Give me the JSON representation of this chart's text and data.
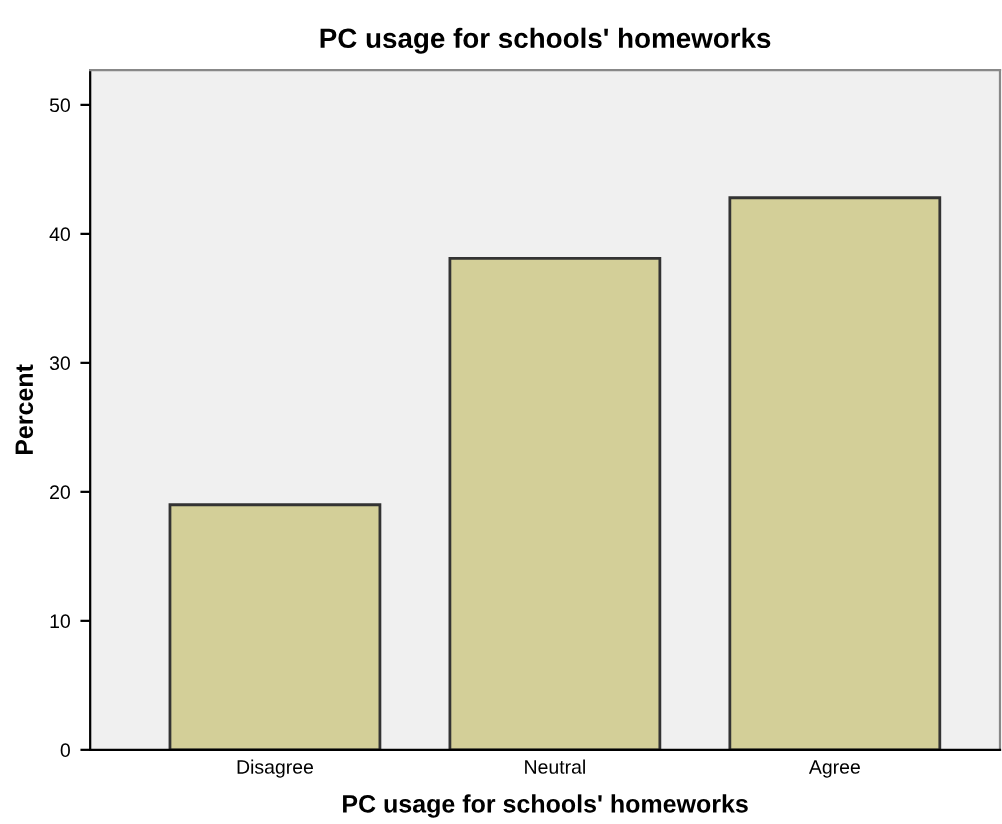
{
  "chart_data": {
    "type": "bar",
    "title": "PC usage for schools' homeworks",
    "xlabel": "PC usage for schools' homeworks",
    "ylabel": "Percent",
    "categories": [
      "Disagree",
      "Neutral",
      "Agree"
    ],
    "values": [
      19.0,
      38.1,
      42.8
    ],
    "color": "#d3cf98",
    "ylim": [
      0,
      52.7
    ],
    "yticks": [
      0,
      10,
      20,
      30,
      40,
      50
    ],
    "grid": false
  }
}
